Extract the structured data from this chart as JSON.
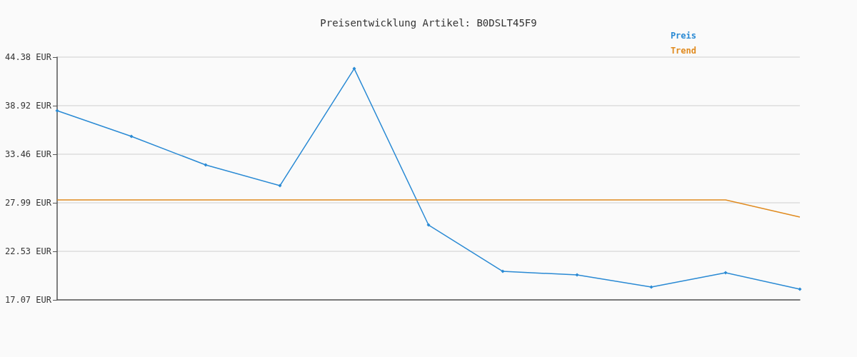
{
  "chart_data": {
    "type": "line",
    "title": "Preisentwicklung Artikel: B0DSLT45F9",
    "categories": [
      null,
      null,
      null,
      null,
      null,
      null,
      null,
      null,
      null,
      null,
      null
    ],
    "series": [
      {
        "name": "Preis",
        "color": "#2a8ad4",
        "marker": "diamond",
        "values": [
          38.36,
          35.47,
          32.25,
          29.92,
          43.09,
          25.5,
          20.28,
          19.88,
          18.51,
          20.12,
          18.27
        ]
      },
      {
        "name": "Trend",
        "color": "#e08a1e",
        "marker": "none",
        "values": [
          28.31,
          28.31,
          28.31,
          28.31,
          28.31,
          28.31,
          28.31,
          28.31,
          28.31,
          28.31,
          26.38
        ]
      }
    ],
    "ylim": [
      17.07,
      44.38
    ],
    "yticks": [
      {
        "value": 17.07,
        "label": "17.07 EUR"
      },
      {
        "value": 22.53,
        "label": "22.53 EUR"
      },
      {
        "value": 27.99,
        "label": "27.99 EUR"
      },
      {
        "value": 33.46,
        "label": "33.46 EUR"
      },
      {
        "value": 38.92,
        "label": "38.92 EUR"
      },
      {
        "value": 44.38,
        "label": "44.38 EUR"
      }
    ],
    "grid": "y",
    "legend": "top right",
    "line_style": "solid"
  }
}
